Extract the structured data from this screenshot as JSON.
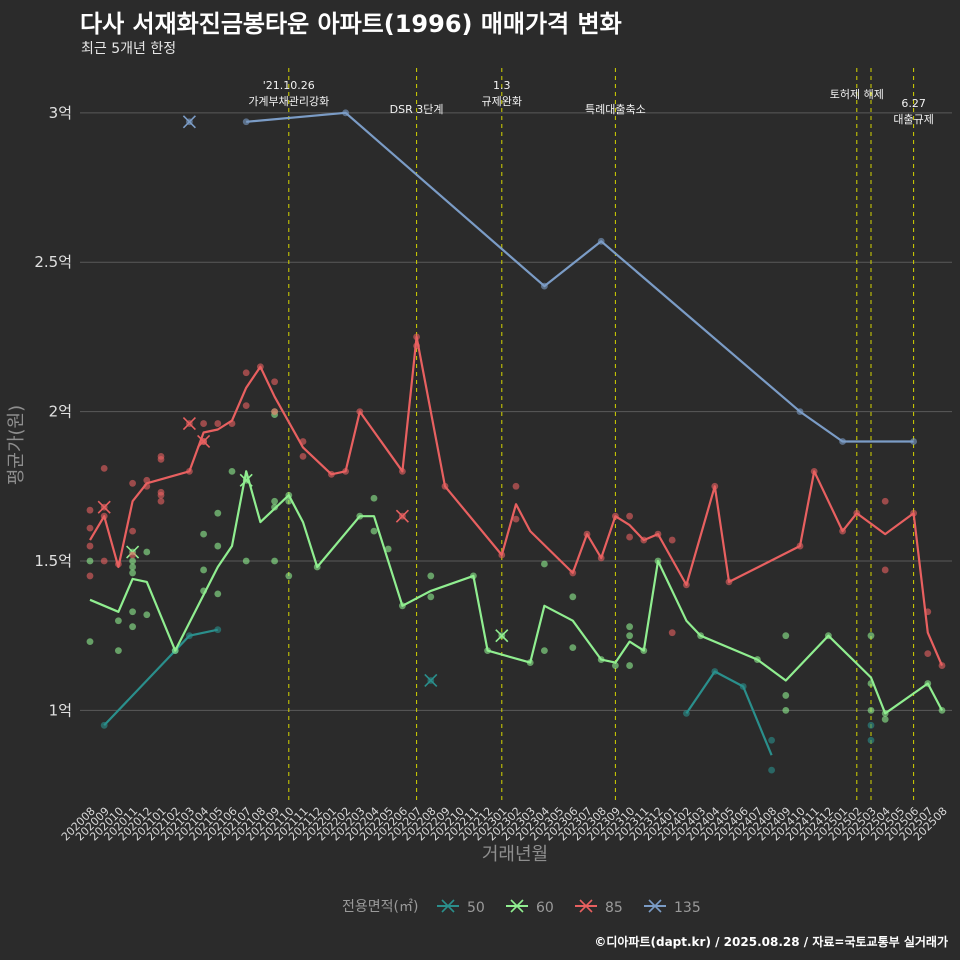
{
  "title": "다사 서재화진금봉타운 아파트(1996) 매매가격 변화",
  "subtitle": "최근 5개년 한정",
  "caption": "©디아파트(dapt.kr) / 2025.08.28 / 자료=국토교통부 실거래가",
  "colors": {
    "background": "#2b2b2b",
    "grid": "#5a5a5a",
    "event_line": "#d4d400",
    "s50": "#2a8f8c",
    "s60": "#90ee90",
    "s85": "#e86060",
    "s135": "#7b9cc6"
  },
  "chart_data": {
    "type": "line",
    "xlabel": "거래년월",
    "ylabel": "평균가(원)",
    "ylim": [
      0.7,
      3.15
    ],
    "yticks": [
      1,
      1.5,
      2,
      2.5,
      3
    ],
    "ytick_labels": [
      "1억",
      "1.5억",
      "2억",
      "2.5억",
      "3억"
    ],
    "x_months": [
      "202008",
      "202009",
      "202010",
      "202011",
      "202012",
      "202101",
      "202102",
      "202103",
      "202104",
      "202105",
      "202106",
      "202107",
      "202108",
      "202109",
      "202110",
      "202111",
      "202112",
      "202201",
      "202202",
      "202203",
      "202204",
      "202205",
      "202206",
      "202207",
      "202208",
      "202209",
      "202210",
      "202211",
      "202212",
      "202301",
      "202302",
      "202303",
      "202304",
      "202305",
      "202306",
      "202307",
      "202308",
      "202309",
      "202310",
      "202311",
      "202312",
      "202401",
      "202402",
      "202403",
      "202404",
      "202405",
      "202406",
      "202407",
      "202408",
      "202409",
      "202410",
      "202411",
      "202412",
      "202501",
      "202502",
      "202503",
      "202504",
      "202505",
      "202506",
      "202507",
      "202508"
    ],
    "legend": {
      "title": "전용면적(㎡)",
      "position": "bottom",
      "entries": [
        "50",
        "60",
        "85",
        "135"
      ]
    },
    "events": [
      {
        "x": "202110",
        "label": [
          "'21.10.26",
          "가계부채관리강화"
        ],
        "label_y": 3.08
      },
      {
        "x": "202207",
        "label": [
          "DSR 3단계"
        ],
        "label_y": 3.0
      },
      {
        "x": "202301",
        "label": [
          "1.3",
          "규제완화"
        ],
        "label_y": 3.08
      },
      {
        "x": "202309",
        "label": [
          "특례대출축소"
        ],
        "label_y": 3.0
      },
      {
        "x": "202502",
        "label": [
          "토허제 해제"
        ],
        "label_y": 3.05
      },
      {
        "x": "202503",
        "label": [],
        "label_y": 3.05
      },
      {
        "x": "202506",
        "label": [
          "6.27",
          "대출규제"
        ],
        "label_y": 3.02
      }
    ],
    "series": [
      {
        "name": "50",
        "color_key": "s50",
        "lines": [
          [
            [
              "202009",
              0.95
            ],
            [
              "202102",
              1.2
            ],
            [
              "202103",
              1.25
            ],
            [
              "202105",
              1.27
            ]
          ],
          [
            [
              "202402",
              0.99
            ],
            [
              "202404",
              1.13
            ],
            [
              "202406",
              1.08
            ],
            [
              "202408",
              0.85
            ]
          ]
        ],
        "points": [
          [
            "202009",
            0.95
          ],
          [
            "202102",
            1.2
          ],
          [
            "202103",
            1.25
          ],
          [
            "202105",
            1.27
          ],
          [
            "202402",
            0.99
          ],
          [
            "202404",
            1.13
          ],
          [
            "202406",
            1.08
          ],
          [
            "202408",
            0.9
          ],
          [
            "202408",
            0.8
          ],
          [
            "202503",
            0.95
          ],
          [
            "202503",
            0.9
          ]
        ],
        "crosses": [
          [
            "202208",
            1.1
          ]
        ]
      },
      {
        "name": "60",
        "color_key": "s60",
        "lines": [
          [
            [
              "202008",
              1.37
            ],
            [
              "202010",
              1.33
            ],
            [
              "202011",
              1.44
            ],
            [
              "202012",
              1.43
            ],
            [
              "202102",
              1.2
            ],
            [
              "202105",
              1.48
            ],
            [
              "202106",
              1.55
            ],
            [
              "202107",
              1.8
            ],
            [
              "202108",
              1.63
            ],
            [
              "202110",
              1.72
            ],
            [
              "202111",
              1.63
            ],
            [
              "202112",
              1.48
            ],
            [
              "202203",
              1.65
            ],
            [
              "202204",
              1.65
            ],
            [
              "202206",
              1.35
            ],
            [
              "202208",
              1.4
            ],
            [
              "202211",
              1.45
            ],
            [
              "202212",
              1.2
            ],
            [
              "202303",
              1.16
            ],
            [
              "202304",
              1.35
            ],
            [
              "202306",
              1.3
            ],
            [
              "202308",
              1.17
            ],
            [
              "202309",
              1.16
            ],
            [
              "202310",
              1.23
            ],
            [
              "202311",
              1.2
            ],
            [
              "202312",
              1.5
            ],
            [
              "202402",
              1.3
            ],
            [
              "202403",
              1.25
            ],
            [
              "202407",
              1.17
            ],
            [
              "202409",
              1.1
            ],
            [
              "202412",
              1.25
            ],
            [
              "202503",
              1.11
            ],
            [
              "202504",
              0.99
            ],
            [
              "202507",
              1.09
            ],
            [
              "202508",
              1.0
            ]
          ]
        ],
        "points": [
          [
            "202008",
            1.5
          ],
          [
            "202008",
            1.23
          ],
          [
            "202010",
            1.3
          ],
          [
            "202010",
            1.2
          ],
          [
            "202011",
            1.5
          ],
          [
            "202011",
            1.48
          ],
          [
            "202011",
            1.46
          ],
          [
            "202011",
            1.33
          ],
          [
            "202011",
            1.28
          ],
          [
            "202012",
            1.53
          ],
          [
            "202012",
            1.32
          ],
          [
            "202102",
            1.2
          ],
          [
            "202104",
            1.47
          ],
          [
            "202104",
            1.59
          ],
          [
            "202104",
            1.4
          ],
          [
            "202105",
            1.66
          ],
          [
            "202105",
            1.55
          ],
          [
            "202105",
            1.39
          ],
          [
            "202106",
            1.8
          ],
          [
            "202107",
            1.5
          ],
          [
            "202109",
            2.0
          ],
          [
            "202109",
            1.99
          ],
          [
            "202109",
            1.7
          ],
          [
            "202109",
            1.68
          ],
          [
            "202109",
            1.5
          ],
          [
            "202110",
            1.72
          ],
          [
            "202110",
            1.7
          ],
          [
            "202110",
            1.45
          ],
          [
            "202112",
            1.48
          ],
          [
            "202203",
            1.65
          ],
          [
            "202204",
            1.71
          ],
          [
            "202204",
            1.6
          ],
          [
            "202205",
            1.54
          ],
          [
            "202206",
            1.35
          ],
          [
            "202208",
            1.45
          ],
          [
            "202208",
            1.38
          ],
          [
            "202211",
            1.45
          ],
          [
            "202212",
            1.2
          ],
          [
            "202303",
            1.16
          ],
          [
            "202304",
            1.49
          ],
          [
            "202304",
            1.2
          ],
          [
            "202306",
            1.38
          ],
          [
            "202306",
            1.21
          ],
          [
            "202308",
            1.17
          ],
          [
            "202309",
            1.15
          ],
          [
            "202310",
            1.28
          ],
          [
            "202310",
            1.25
          ],
          [
            "202310",
            1.15
          ],
          [
            "202311",
            1.2
          ],
          [
            "202312",
            1.5
          ],
          [
            "202403",
            1.25
          ],
          [
            "202407",
            1.17
          ],
          [
            "202409",
            1.25
          ],
          [
            "202409",
            1.05
          ],
          [
            "202409",
            1.0
          ],
          [
            "202412",
            1.25
          ],
          [
            "202503",
            1.25
          ],
          [
            "202503",
            1.09
          ],
          [
            "202503",
            1.0
          ],
          [
            "202504",
            0.99
          ],
          [
            "202504",
            0.97
          ],
          [
            "202507",
            1.09
          ],
          [
            "202508",
            1.0
          ]
        ],
        "crosses": [
          [
            "202011",
            1.53
          ],
          [
            "202107",
            1.77
          ],
          [
            "202301",
            1.25
          ]
        ]
      },
      {
        "name": "85",
        "color_key": "s85",
        "lines": [
          [
            [
              "202008",
              1.57
            ],
            [
              "202009",
              1.65
            ],
            [
              "202010",
              1.48
            ],
            [
              "202011",
              1.7
            ],
            [
              "202012",
              1.76
            ],
            [
              "202103",
              1.8
            ],
            [
              "202104",
              1.93
            ],
            [
              "202105",
              1.94
            ],
            [
              "202106",
              1.97
            ],
            [
              "202107",
              2.08
            ],
            [
              "202108",
              2.15
            ],
            [
              "202109",
              2.05
            ],
            [
              "202111",
              1.88
            ],
            [
              "202201",
              1.79
            ],
            [
              "202202",
              1.8
            ],
            [
              "202203",
              2.0
            ],
            [
              "202206",
              1.8
            ],
            [
              "202207",
              2.25
            ],
            [
              "202209",
              1.75
            ],
            [
              "202301",
              1.52
            ],
            [
              "202302",
              1.69
            ],
            [
              "202303",
              1.6
            ],
            [
              "202306",
              1.46
            ],
            [
              "202307",
              1.59
            ],
            [
              "202308",
              1.51
            ],
            [
              "202309",
              1.65
            ],
            [
              "202310",
              1.62
            ],
            [
              "202311",
              1.57
            ],
            [
              "202312",
              1.59
            ],
            [
              "202402",
              1.42
            ],
            [
              "202404",
              1.75
            ],
            [
              "202405",
              1.43
            ],
            [
              "202410",
              1.55
            ],
            [
              "202411",
              1.8
            ],
            [
              "202501",
              1.6
            ],
            [
              "202502",
              1.66
            ],
            [
              "202504",
              1.59
            ],
            [
              "202506",
              1.66
            ],
            [
              "202507",
              1.26
            ],
            [
              "202508",
              1.15
            ]
          ]
        ],
        "points": [
          [
            "202008",
            1.67
          ],
          [
            "202008",
            1.61
          ],
          [
            "202008",
            1.55
          ],
          [
            "202008",
            1.45
          ],
          [
            "202009",
            1.81
          ],
          [
            "202009",
            1.65
          ],
          [
            "202009",
            1.5
          ],
          [
            "202010",
            1.49
          ],
          [
            "202011",
            1.76
          ],
          [
            "202011",
            1.6
          ],
          [
            "202011",
            1.52
          ],
          [
            "202012",
            1.77
          ],
          [
            "202012",
            1.75
          ],
          [
            "202101",
            1.85
          ],
          [
            "202101",
            1.84
          ],
          [
            "202101",
            1.73
          ],
          [
            "202101",
            1.72
          ],
          [
            "202101",
            1.7
          ],
          [
            "202103",
            1.8
          ],
          [
            "202104",
            1.96
          ],
          [
            "202104",
            1.9
          ],
          [
            "202105",
            1.96
          ],
          [
            "202106",
            1.96
          ],
          [
            "202107",
            2.13
          ],
          [
            "202107",
            2.02
          ],
          [
            "202108",
            2.15
          ],
          [
            "202109",
            2.1
          ],
          [
            "202109",
            2.0
          ],
          [
            "202111",
            1.9
          ],
          [
            "202111",
            1.85
          ],
          [
            "202201",
            1.79
          ],
          [
            "202202",
            1.8
          ],
          [
            "202203",
            2.0
          ],
          [
            "202206",
            1.8
          ],
          [
            "202207",
            2.25
          ],
          [
            "202207",
            2.22
          ],
          [
            "202209",
            1.75
          ],
          [
            "202301",
            1.52
          ],
          [
            "202302",
            1.75
          ],
          [
            "202302",
            1.64
          ],
          [
            "202306",
            1.46
          ],
          [
            "202307",
            1.59
          ],
          [
            "202308",
            1.51
          ],
          [
            "202309",
            1.65
          ],
          [
            "202310",
            1.65
          ],
          [
            "202310",
            1.58
          ],
          [
            "202311",
            1.57
          ],
          [
            "202312",
            1.59
          ],
          [
            "202401",
            1.57
          ],
          [
            "202401",
            1.26
          ],
          [
            "202402",
            1.42
          ],
          [
            "202404",
            1.75
          ],
          [
            "202405",
            1.43
          ],
          [
            "202410",
            1.55
          ],
          [
            "202411",
            1.8
          ],
          [
            "202501",
            1.6
          ],
          [
            "202502",
            1.66
          ],
          [
            "202504",
            1.7
          ],
          [
            "202504",
            1.47
          ],
          [
            "202506",
            1.66
          ],
          [
            "202507",
            1.33
          ],
          [
            "202507",
            1.19
          ],
          [
            "202508",
            1.15
          ]
        ],
        "crosses": [
          [
            "202009",
            1.68
          ],
          [
            "202103",
            1.96
          ],
          [
            "202104",
            1.9
          ],
          [
            "202206",
            1.65
          ]
        ]
      },
      {
        "name": "135",
        "color_key": "s135",
        "lines": [
          [
            [
              "202107",
              2.97
            ],
            [
              "202202",
              3.0
            ],
            [
              "202304",
              2.42
            ],
            [
              "202308",
              2.57
            ],
            [
              "202410",
              2.0
            ],
            [
              "202501",
              1.9
            ],
            [
              "202506",
              1.9
            ]
          ]
        ],
        "points": [
          [
            "202107",
            2.97
          ],
          [
            "202202",
            3.0
          ],
          [
            "202304",
            2.42
          ],
          [
            "202308",
            2.57
          ],
          [
            "202410",
            2.0
          ],
          [
            "202501",
            1.9
          ],
          [
            "202506",
            1.9
          ]
        ],
        "crosses": [
          [
            "202103",
            2.97
          ]
        ]
      }
    ]
  }
}
